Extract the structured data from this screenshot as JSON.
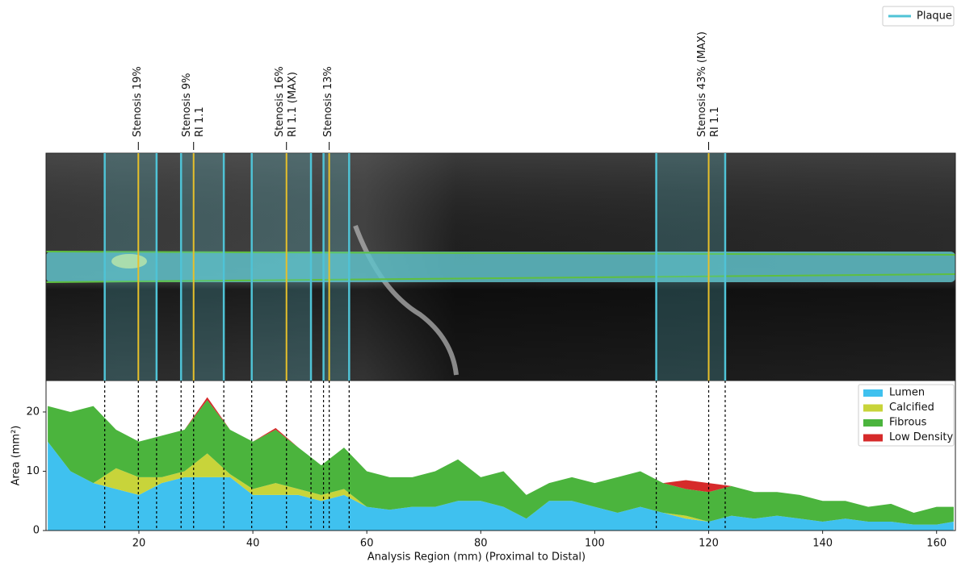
{
  "chart_data": {
    "type": "stacked-area",
    "xlabel": "Analysis Region (mm) (Proximal to Distal)",
    "ylabel": "Area (mm²)",
    "x": [
      4,
      8,
      12,
      16,
      20,
      24,
      28,
      32,
      36,
      40,
      44,
      48,
      52,
      56,
      60,
      64,
      68,
      72,
      76,
      80,
      84,
      88,
      92,
      96,
      100,
      104,
      108,
      112,
      116,
      120,
      124,
      128,
      132,
      136,
      140,
      144,
      148,
      152,
      156,
      160,
      163
    ],
    "series": [
      {
        "name": "Lumen",
        "color": "#3fc1ef",
        "values": [
          15,
          10,
          8,
          7,
          6,
          8,
          9,
          9,
          9,
          6,
          6,
          6,
          5,
          6,
          4,
          3.5,
          4,
          4,
          5,
          5,
          4,
          2,
          5,
          5,
          4,
          3,
          4,
          3,
          2,
          1.5,
          2.5,
          2,
          2.5,
          2,
          1.5,
          2,
          1.5,
          1.5,
          1,
          1,
          1.5
        ]
      },
      {
        "name": "Calcified",
        "color": "#c8d43a",
        "values": [
          0,
          0,
          0,
          3.5,
          3,
          1,
          1,
          4,
          0.5,
          1,
          2,
          1,
          1,
          1,
          0,
          0,
          0,
          0,
          0,
          0,
          0,
          0,
          0,
          0,
          0,
          0,
          0,
          0,
          0.5,
          0,
          0,
          0,
          0,
          0,
          0,
          0,
          0,
          0,
          0,
          0,
          0
        ]
      },
      {
        "name": "Fibrous",
        "color": "#4bb43d",
        "values": [
          6,
          10,
          13,
          6.5,
          6,
          7,
          7,
          9,
          7.5,
          8,
          9,
          7,
          5,
          7,
          6,
          5.5,
          5,
          6,
          7,
          4,
          6,
          4,
          3,
          4,
          4,
          6,
          6,
          5,
          4.5,
          5,
          5,
          4.5,
          4,
          4,
          3.5,
          3,
          2.5,
          3,
          2,
          3,
          2.5
        ]
      },
      {
        "name": "Low Density",
        "color": "#d62a2a",
        "values": [
          0,
          0,
          0,
          0,
          0,
          0,
          0,
          0.5,
          0,
          0,
          0.3,
          0,
          0,
          0,
          0,
          0,
          0,
          0,
          0,
          0,
          0,
          0,
          0,
          0,
          0,
          0,
          0,
          0,
          1.5,
          1.5,
          0,
          0,
          0,
          0,
          0,
          0,
          0,
          0,
          0,
          0,
          0
        ]
      }
    ],
    "xlim": [
      3.7,
      163.3
    ],
    "ylim": [
      0,
      25.3
    ],
    "xticks": [
      20,
      40,
      60,
      80,
      100,
      120,
      140,
      160
    ],
    "yticks": [
      0,
      10,
      20
    ],
    "legend": "upper right",
    "plaque_legend": {
      "name": "Plaque",
      "color": "#4fc3d6"
    },
    "plaque_regions": [
      [
        14.0,
        23.1
      ],
      [
        27.4,
        34.9
      ],
      [
        39.8,
        50.2
      ],
      [
        52.4,
        56.9
      ],
      [
        110.8,
        122.9
      ]
    ],
    "stenosis_markers": [
      {
        "x": 19.9,
        "lines": [
          "Stenosis 19%"
        ]
      },
      {
        "x": 29.6,
        "lines": [
          "Stenosis 9%",
          "RI 1.1"
        ]
      },
      {
        "x": 45.9,
        "lines": [
          "Stenosis 16%",
          "RI 1.1 (MAX)"
        ]
      },
      {
        "x": 53.4,
        "lines": [
          "Stenosis 13%"
        ]
      },
      {
        "x": 120.0,
        "lines": [
          "Stenosis 43% (MAX)",
          "RI 1.1"
        ]
      }
    ]
  }
}
